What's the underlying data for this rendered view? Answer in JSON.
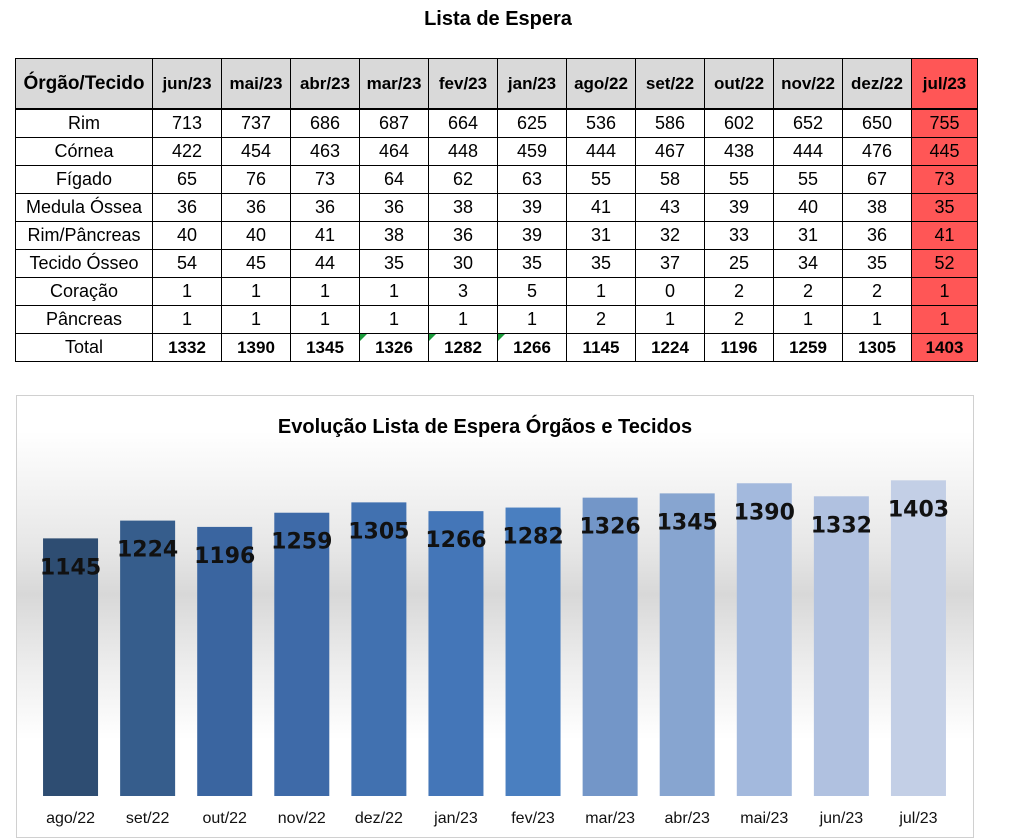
{
  "table": {
    "title": "Lista de Espera",
    "corner": "Órgão/Tecido",
    "months": [
      "jun/23",
      "mai/23",
      "abr/23",
      "mar/23",
      "fev/23",
      "jan/23",
      "ago/22",
      "set/22",
      "out/22",
      "nov/22",
      "dez/22",
      "jul/23"
    ],
    "highlight_color": "#ff5656",
    "rows": [
      {
        "label": "Rim",
        "values": [
          713,
          737,
          686,
          687,
          664,
          625,
          536,
          586,
          602,
          652,
          650,
          755
        ]
      },
      {
        "label": "Córnea",
        "values": [
          422,
          454,
          463,
          464,
          448,
          459,
          444,
          467,
          438,
          444,
          476,
          445
        ]
      },
      {
        "label": "Fígado",
        "values": [
          65,
          76,
          73,
          64,
          62,
          63,
          55,
          58,
          55,
          55,
          67,
          73
        ]
      },
      {
        "label": "Medula Óssea",
        "values": [
          36,
          36,
          36,
          36,
          38,
          39,
          41,
          43,
          39,
          40,
          38,
          35
        ]
      },
      {
        "label": "Rim/Pâncreas",
        "values": [
          40,
          40,
          41,
          38,
          36,
          39,
          31,
          32,
          33,
          31,
          36,
          41
        ]
      },
      {
        "label": "Tecido Ósseo",
        "values": [
          54,
          45,
          44,
          35,
          30,
          35,
          35,
          37,
          25,
          34,
          35,
          52
        ]
      },
      {
        "label": "Coração",
        "values": [
          1,
          1,
          1,
          1,
          3,
          5,
          1,
          0,
          2,
          2,
          2,
          1
        ]
      },
      {
        "label": "Pâncreas",
        "values": [
          1,
          1,
          1,
          1,
          1,
          1,
          2,
          1,
          2,
          1,
          1,
          1
        ]
      }
    ],
    "total": {
      "label": "Total",
      "values": [
        1332,
        1390,
        1345,
        1326,
        1282,
        1266,
        1145,
        1224,
        1196,
        1259,
        1305,
        1403
      ]
    }
  },
  "chart_data": {
    "type": "bar",
    "title": "Evolução Lista de Espera Órgãos e Tecidos",
    "categories": [
      "ago/22",
      "set/22",
      "out/22",
      "nov/22",
      "dez/22",
      "jan/23",
      "fev/23",
      "mar/23",
      "abr/23",
      "mai/23",
      "jun/23",
      "jul/23"
    ],
    "values": [
      1145,
      1224,
      1196,
      1259,
      1305,
      1266,
      1282,
      1326,
      1345,
      1390,
      1332,
      1403
    ],
    "colors": [
      "#2e4d72",
      "#365d8c",
      "#3a65a0",
      "#3e6aa8",
      "#4171b0",
      "#4476b8",
      "#4a7fc0",
      "#7396c8",
      "#87a5d0",
      "#a3b9dd",
      "#b0c1e0",
      "#c3cfe6"
    ],
    "ylim": [
      0,
      1600
    ],
    "xlabel": "",
    "ylabel": "",
    "grid": false,
    "data_labels": true
  }
}
